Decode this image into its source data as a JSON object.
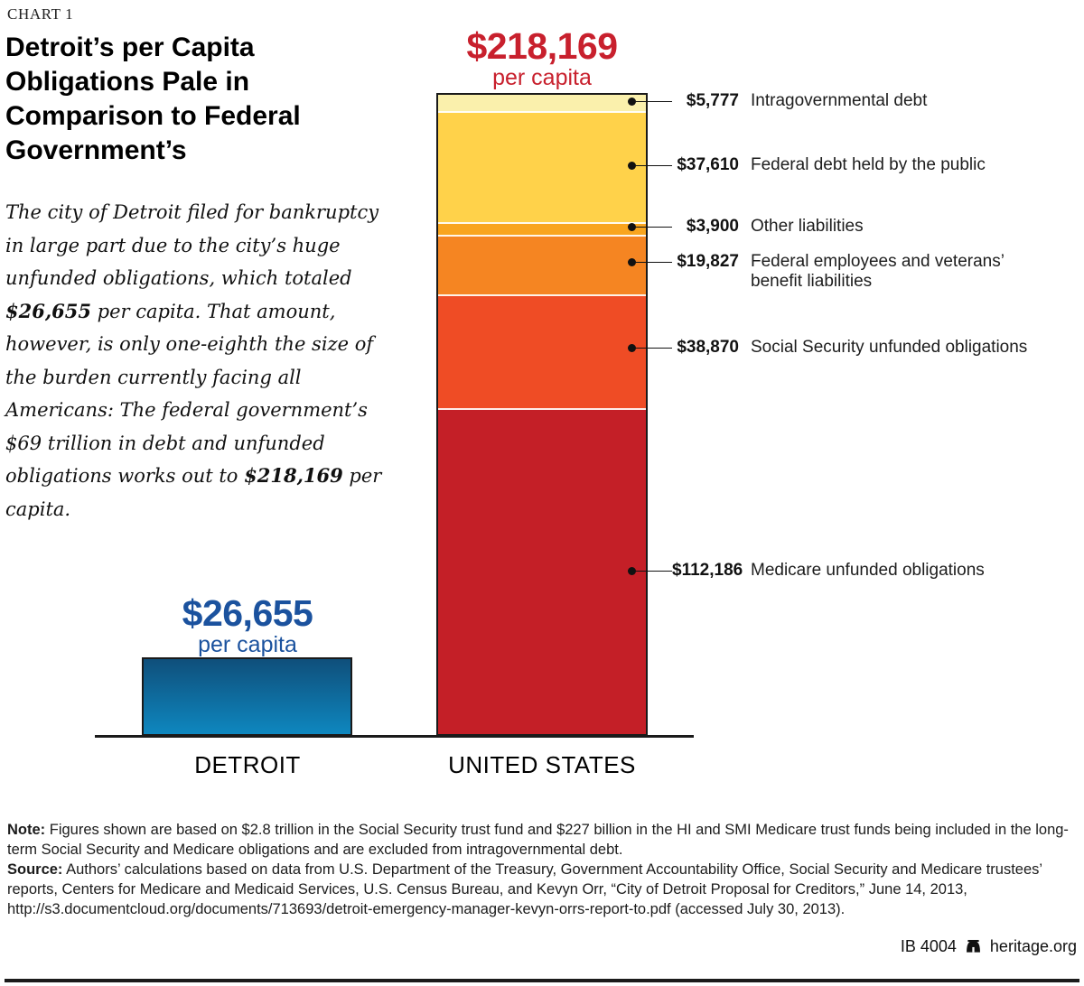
{
  "kicker": "CHART 1",
  "title": "Detroit’s per Capita Obligations Pale in Comparison to Federal Government’s",
  "intro": {
    "parts": {
      "p0": "The city of Detroit filed for bankruptcy in large part due to the city’s huge unfunded obligations, which totaled ",
      "b1": "$26,655",
      "p2": " per capita. That amount, however, is only one-eighth the size of the burden currently facing all Americans: The federal government’s $69 trillion in debt and unfunded obligations works out to ",
      "b3": "$218,169",
      "p4": " per capita."
    }
  },
  "chart_data": {
    "type": "bar",
    "variant": "stacked-comparison",
    "unit": "US dollars per capita",
    "categories": [
      "DETROIT",
      "UNITED STATES"
    ],
    "detroit": {
      "total": 26655,
      "value_label": "$26,655",
      "sublabel": "per capita",
      "accent": "#1B529E",
      "color_top": "#0F4F7B",
      "color_bottom": "#0E87BF"
    },
    "us": {
      "total": 218169,
      "value_label": "$218,169",
      "sublabel": "per capita",
      "accent": "#C8202D",
      "segments": [
        {
          "name": "Intragovernmental debt",
          "value": 5777,
          "value_label": "$5,777",
          "color": "#FAF0AC"
        },
        {
          "name": "Federal debt held by the public",
          "value": 37610,
          "value_label": "$37,610",
          "color": "#FFD24A"
        },
        {
          "name": "Other liabilities",
          "value": 3900,
          "value_label": "$3,900",
          "color": "#F9A51E"
        },
        {
          "name": "Federal employees and veterans’ benefit liabilities",
          "value": 19827,
          "value_label": "$19,827",
          "color": "#F58522"
        },
        {
          "name": "Social Security unfunded obligations",
          "value": 38870,
          "value_label": "$38,870",
          "color": "#EF4C25"
        },
        {
          "name": "Medicare unfunded obligations",
          "value": 112186,
          "value_label": "$112,186",
          "color": "#C41F27"
        }
      ]
    }
  },
  "note": {
    "label": "Note:",
    "text": " Figures shown are based on $2.8 trillion in the Social Security trust fund and $227 billion in the HI and SMI Medicare trust funds being included in the long-term Social Security and Medicare obligations and are excluded from intragovernmental debt."
  },
  "source": {
    "label": "Source:",
    "text": " Authors’ calculations based on data from U.S. Department of the Treasury, Government Accountability Office, Social Security and Medicare trustees’ reports, Centers for Medicare and Medicaid Services, U.S. Census Bureau, and Kevyn Orr, “City of Detroit Proposal for Creditors,” June 14, 2013, http://s3.documentcloud.org/documents/713693/detroit-emergency-manager-kevyn-orrs-report-to.pdf (accessed July 30, 2013)."
  },
  "footer": {
    "doc_id": "IB 4004",
    "site": "heritage.org"
  }
}
